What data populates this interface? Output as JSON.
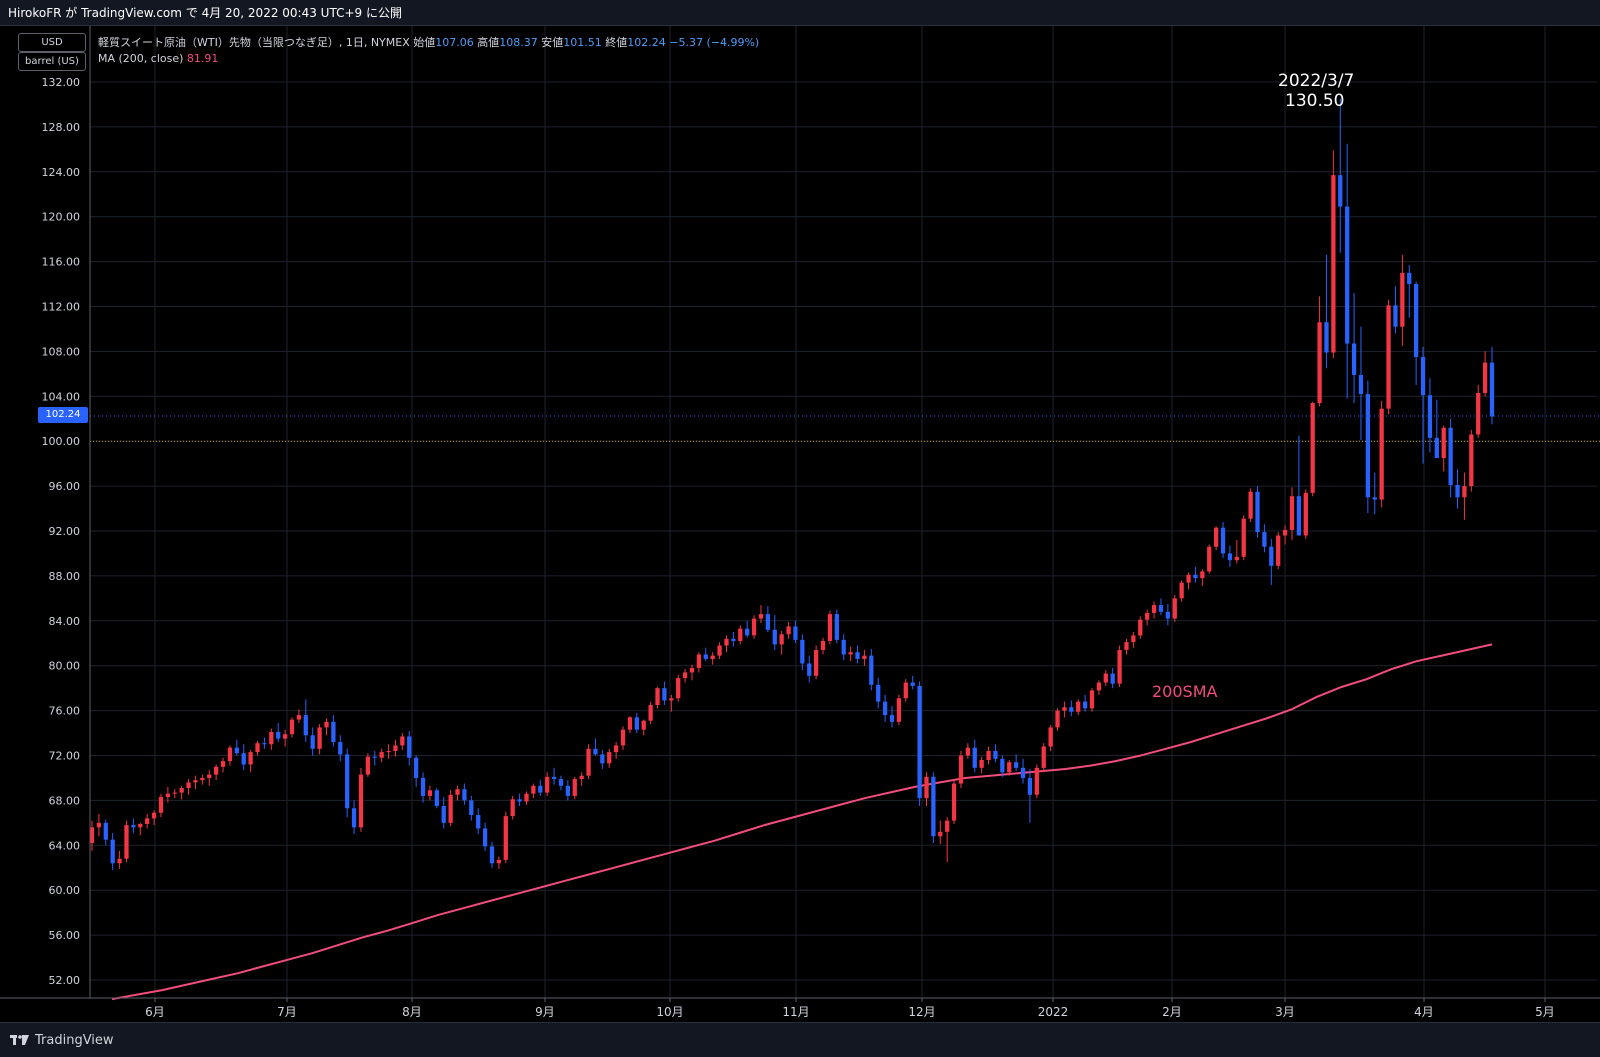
{
  "header": {
    "publish_line": "HirokoFR が TradingView.com で 4月 20, 2022 00:43 UTC+9 に公開"
  },
  "scale_pills": {
    "currency": "USD",
    "unit": "barrel (US)"
  },
  "legend": {
    "symbol": "軽質スイート原油（WTI）先物（当限つなぎ足）, 1日, NYMEX",
    "open_label": "始値",
    "open": "107.06",
    "high_label": "高値",
    "high": "108.37",
    "low_label": "安値",
    "low": "101.51",
    "close_label": "終値",
    "close": "102.24",
    "change": "−5.37 (−4.99%)",
    "ma_label": "MA (200, close)",
    "ma_value": "81.91"
  },
  "annotations": {
    "peak_date": "2022/3/7",
    "peak_price": "130.50",
    "sma_label": "200SMA",
    "last_price_badge": "102.24"
  },
  "footer": {
    "brand": "TradingView"
  },
  "colors": {
    "up": "#f23645",
    "down": "#2962ff",
    "ma": "#f04d7d",
    "grid": "#1e222d",
    "hline": "#c8a43b",
    "last_line": "#2962ff"
  },
  "chart_data": {
    "type": "candlestick",
    "ylim": [
      50,
      132
    ],
    "y_ticks": [
      "52.00",
      "56.00",
      "60.00",
      "64.00",
      "68.00",
      "72.00",
      "76.00",
      "80.00",
      "84.00",
      "88.00",
      "92.00",
      "96.00",
      "100.00",
      "104.00",
      "108.00",
      "112.00",
      "116.00",
      "120.00",
      "124.00",
      "128.00",
      "132.00"
    ],
    "x_ticks": [
      "6月",
      "7月",
      "8月",
      "9月",
      "10月",
      "11月",
      "12月",
      "2022",
      "2月",
      "3月",
      "4月",
      "5月"
    ],
    "horizontal_line": 100,
    "last_price": 102.24,
    "ma_series": {
      "name": "MA (200, close)",
      "values": [
        50.3,
        50.7,
        51.1,
        51.6,
        52.1,
        52.6,
        53.2,
        53.8,
        54.4,
        55.1,
        55.8,
        56.4,
        57.1,
        57.8,
        58.4,
        59.0,
        59.6,
        60.2,
        60.8,
        61.4,
        62.0,
        62.6,
        63.2,
        63.8,
        64.4,
        65.1,
        65.8,
        66.4,
        67.0,
        67.6,
        68.2,
        68.7,
        69.2,
        69.6,
        70.0,
        70.2,
        70.4,
        70.6,
        70.8,
        71.1,
        71.5,
        72.0,
        72.6,
        73.2,
        73.9,
        74.6,
        75.3,
        76.1,
        77.2,
        78.1,
        78.8,
        79.7,
        80.4,
        80.9,
        81.4,
        81.9
      ]
    },
    "candles": [
      [
        64.2,
        66.2,
        63.5,
        65.6
      ],
      [
        65.6,
        66.8,
        64.8,
        66.0
      ],
      [
        66.0,
        66.3,
        64.0,
        64.5
      ],
      [
        64.5,
        65.1,
        61.8,
        62.4
      ],
      [
        62.4,
        63.5,
        61.9,
        62.8
      ],
      [
        62.8,
        66.2,
        62.5,
        65.8
      ],
      [
        65.8,
        66.4,
        65.1,
        65.6
      ],
      [
        65.6,
        66.0,
        64.9,
        65.9
      ],
      [
        65.9,
        66.8,
        65.5,
        66.4
      ],
      [
        66.4,
        67.1,
        65.8,
        66.9
      ],
      [
        66.9,
        68.6,
        66.5,
        68.3
      ],
      [
        68.3,
        69.2,
        67.8,
        68.6
      ],
      [
        68.6,
        69.0,
        68.2,
        68.7
      ],
      [
        68.7,
        69.3,
        68.1,
        69.1
      ],
      [
        69.1,
        69.9,
        68.5,
        69.6
      ],
      [
        69.6,
        70.2,
        69.0,
        69.8
      ],
      [
        69.8,
        70.3,
        69.4,
        70.0
      ],
      [
        70.0,
        70.7,
        69.3,
        70.3
      ],
      [
        70.3,
        71.2,
        69.8,
        71.0
      ],
      [
        71.0,
        71.8,
        70.5,
        71.5
      ],
      [
        71.5,
        72.9,
        71.1,
        72.7
      ],
      [
        72.7,
        73.4,
        72.0,
        72.2
      ],
      [
        72.2,
        73.0,
        70.7,
        71.2
      ],
      [
        71.2,
        72.5,
        70.5,
        72.3
      ],
      [
        72.3,
        73.3,
        72.0,
        73.1
      ],
      [
        73.1,
        73.6,
        72.6,
        73.0
      ],
      [
        73.0,
        74.4,
        72.5,
        74.1
      ],
      [
        74.1,
        74.9,
        73.2,
        73.5
      ],
      [
        73.5,
        74.3,
        72.8,
        73.9
      ],
      [
        73.9,
        75.4,
        73.6,
        75.2
      ],
      [
        75.2,
        76.1,
        74.9,
        75.6
      ],
      [
        75.6,
        77.0,
        73.2,
        73.8
      ],
      [
        73.8,
        74.5,
        72.0,
        72.6
      ],
      [
        72.6,
        74.8,
        72.1,
        74.5
      ],
      [
        74.5,
        75.3,
        73.8,
        75.0
      ],
      [
        75.0,
        75.6,
        72.8,
        73.2
      ],
      [
        73.2,
        73.8,
        71.5,
        72.1
      ],
      [
        72.1,
        72.6,
        66.5,
        67.3
      ],
      [
        67.3,
        68.0,
        65.0,
        65.6
      ],
      [
        65.6,
        70.9,
        65.2,
        70.3
      ],
      [
        70.3,
        72.2,
        70.1,
        71.9
      ],
      [
        71.9,
        72.4,
        71.1,
        71.8
      ],
      [
        71.8,
        72.6,
        71.4,
        72.3
      ],
      [
        72.3,
        73.0,
        71.7,
        72.4
      ],
      [
        72.4,
        73.4,
        71.9,
        72.9
      ],
      [
        72.9,
        74.0,
        72.5,
        73.7
      ],
      [
        73.7,
        74.2,
        71.1,
        71.8
      ],
      [
        71.8,
        72.0,
        69.2,
        70.0
      ],
      [
        70.0,
        70.5,
        67.8,
        68.4
      ],
      [
        68.4,
        69.3,
        68.0,
        68.9
      ],
      [
        68.9,
        69.1,
        67.3,
        67.5
      ],
      [
        67.5,
        68.3,
        65.5,
        66.0
      ],
      [
        66.0,
        68.9,
        65.7,
        68.5
      ],
      [
        68.5,
        69.3,
        68.0,
        69.0
      ],
      [
        69.0,
        69.5,
        67.6,
        68.0
      ],
      [
        68.0,
        68.4,
        66.2,
        66.7
      ],
      [
        66.7,
        67.3,
        65.0,
        65.5
      ],
      [
        65.5,
        66.0,
        63.5,
        63.9
      ],
      [
        63.9,
        64.3,
        62.0,
        62.4
      ],
      [
        62.4,
        63.0,
        61.9,
        62.7
      ],
      [
        62.7,
        67.0,
        62.4,
        66.6
      ],
      [
        66.6,
        68.4,
        66.3,
        68.1
      ],
      [
        68.1,
        68.6,
        67.5,
        67.9
      ],
      [
        67.9,
        68.8,
        67.6,
        68.6
      ],
      [
        68.6,
        69.5,
        68.2,
        69.3
      ],
      [
        69.3,
        69.8,
        68.4,
        68.7
      ],
      [
        68.7,
        70.5,
        68.4,
        70.1
      ],
      [
        70.1,
        70.9,
        69.4,
        69.9
      ],
      [
        69.9,
        70.2,
        68.9,
        69.3
      ],
      [
        69.3,
        69.8,
        68.0,
        68.4
      ],
      [
        68.4,
        70.1,
        68.1,
        69.9
      ],
      [
        69.9,
        70.5,
        69.3,
        70.2
      ],
      [
        70.2,
        73.0,
        69.9,
        72.6
      ],
      [
        72.6,
        73.5,
        72.0,
        72.1
      ],
      [
        72.1,
        72.5,
        70.8,
        71.3
      ],
      [
        71.3,
        72.6,
        70.9,
        72.3
      ],
      [
        72.3,
        73.2,
        71.7,
        72.9
      ],
      [
        72.9,
        74.6,
        72.5,
        74.3
      ],
      [
        74.3,
        75.5,
        74.0,
        75.4
      ],
      [
        75.4,
        75.8,
        74.0,
        74.3
      ],
      [
        74.3,
        75.2,
        73.8,
        75.1
      ],
      [
        75.1,
        76.8,
        74.8,
        76.5
      ],
      [
        76.5,
        78.1,
        76.2,
        78.0
      ],
      [
        78.0,
        78.6,
        76.5,
        76.9
      ],
      [
        76.9,
        77.4,
        75.9,
        77.1
      ],
      [
        77.1,
        79.2,
        76.8,
        78.9
      ],
      [
        78.9,
        79.7,
        78.5,
        79.4
      ],
      [
        79.4,
        80.1,
        78.7,
        79.8
      ],
      [
        79.8,
        81.2,
        79.4,
        81.0
      ],
      [
        81.0,
        81.6,
        80.4,
        80.6
      ],
      [
        80.6,
        81.2,
        80.1,
        80.9
      ],
      [
        80.9,
        82.1,
        80.6,
        81.8
      ],
      [
        81.8,
        82.7,
        81.2,
        82.4
      ],
      [
        82.4,
        83.0,
        81.7,
        82.2
      ],
      [
        82.2,
        83.6,
        81.9,
        83.3
      ],
      [
        83.3,
        84.0,
        82.5,
        82.7
      ],
      [
        82.7,
        84.5,
        82.4,
        84.2
      ],
      [
        84.2,
        85.4,
        83.8,
        84.6
      ],
      [
        84.6,
        85.3,
        83.0,
        83.2
      ],
      [
        83.2,
        84.5,
        81.4,
        81.9
      ],
      [
        81.9,
        83.1,
        81.0,
        82.8
      ],
      [
        82.8,
        83.9,
        82.4,
        83.5
      ],
      [
        83.5,
        84.0,
        82.0,
        82.3
      ],
      [
        82.3,
        82.8,
        79.6,
        80.2
      ],
      [
        80.2,
        80.9,
        78.5,
        79.1
      ],
      [
        79.1,
        81.8,
        78.8,
        81.4
      ],
      [
        81.4,
        82.5,
        81.0,
        82.2
      ],
      [
        82.2,
        84.9,
        81.9,
        84.6
      ],
      [
        84.6,
        85.0,
        82.0,
        82.3
      ],
      [
        82.3,
        82.8,
        80.5,
        81.0
      ],
      [
        81.0,
        81.7,
        80.4,
        81.2
      ],
      [
        81.2,
        81.8,
        80.2,
        80.6
      ],
      [
        80.6,
        81.4,
        80.0,
        80.9
      ],
      [
        80.9,
        81.5,
        77.8,
        78.3
      ],
      [
        78.3,
        78.9,
        76.2,
        76.8
      ],
      [
        76.8,
        77.4,
        75.0,
        75.6
      ],
      [
        75.6,
        76.4,
        74.5,
        75.0
      ],
      [
        75.0,
        77.4,
        74.7,
        77.1
      ],
      [
        77.1,
        78.8,
        76.8,
        78.5
      ],
      [
        78.5,
        79.1,
        77.9,
        78.2
      ],
      [
        78.2,
        78.6,
        67.5,
        68.2
      ],
      [
        68.2,
        70.5,
        67.5,
        70.1
      ],
      [
        70.1,
        70.5,
        64.2,
        64.8
      ],
      [
        64.8,
        66.2,
        64.1,
        65.2
      ],
      [
        65.2,
        66.5,
        62.5,
        66.2
      ],
      [
        66.2,
        69.8,
        65.9,
        69.5
      ],
      [
        69.5,
        72.4,
        69.1,
        72.0
      ],
      [
        72.0,
        73.1,
        71.7,
        72.7
      ],
      [
        72.7,
        73.4,
        70.5,
        70.9
      ],
      [
        70.9,
        71.9,
        70.4,
        71.6
      ],
      [
        71.6,
        72.8,
        71.2,
        72.4
      ],
      [
        72.4,
        73.0,
        71.4,
        71.7
      ],
      [
        71.7,
        72.0,
        70.1,
        70.5
      ],
      [
        70.5,
        71.6,
        70.2,
        71.4
      ],
      [
        71.4,
        72.1,
        70.6,
        70.9
      ],
      [
        70.9,
        71.7,
        69.5,
        70.0
      ],
      [
        70.0,
        70.8,
        66.0,
        68.5
      ],
      [
        68.5,
        71.2,
        68.2,
        70.9
      ],
      [
        70.9,
        73.1,
        70.5,
        72.8
      ],
      [
        72.8,
        74.7,
        72.4,
        74.5
      ],
      [
        74.5,
        76.2,
        74.2,
        76.0
      ],
      [
        76.0,
        76.8,
        75.4,
        76.3
      ],
      [
        76.3,
        76.9,
        75.5,
        75.9
      ],
      [
        75.9,
        77.0,
        75.6,
        76.8
      ],
      [
        76.8,
        77.4,
        75.9,
        76.2
      ],
      [
        76.2,
        78.0,
        75.9,
        77.8
      ],
      [
        77.8,
        78.7,
        77.4,
        78.5
      ],
      [
        78.5,
        79.6,
        78.2,
        79.3
      ],
      [
        79.3,
        79.8,
        78.0,
        78.4
      ],
      [
        78.4,
        81.8,
        78.1,
        81.4
      ],
      [
        81.4,
        82.4,
        81.0,
        82.1
      ],
      [
        82.1,
        83.0,
        81.6,
        82.7
      ],
      [
        82.7,
        84.4,
        82.4,
        84.1
      ],
      [
        84.1,
        85.0,
        83.6,
        84.7
      ],
      [
        84.7,
        85.7,
        84.2,
        85.4
      ],
      [
        85.4,
        86.0,
        84.5,
        84.8
      ],
      [
        84.8,
        85.5,
        83.6,
        84.2
      ],
      [
        84.2,
        86.3,
        83.9,
        86.0
      ],
      [
        86.0,
        87.6,
        85.7,
        87.4
      ],
      [
        87.4,
        88.3,
        86.8,
        88.1
      ],
      [
        88.1,
        88.8,
        87.4,
        87.8
      ],
      [
        87.8,
        88.6,
        87.1,
        88.4
      ],
      [
        88.4,
        90.8,
        88.2,
        90.6
      ],
      [
        90.6,
        92.4,
        90.3,
        92.3
      ],
      [
        92.3,
        92.8,
        89.6,
        90.0
      ],
      [
        90.0,
        90.7,
        88.8,
        89.4
      ],
      [
        89.4,
        91.2,
        89.1,
        89.7
      ],
      [
        89.7,
        93.4,
        89.4,
        93.1
      ],
      [
        93.1,
        95.8,
        92.8,
        95.5
      ],
      [
        95.5,
        96.0,
        91.4,
        91.9
      ],
      [
        91.9,
        92.6,
        90.1,
        90.6
      ],
      [
        90.6,
        91.3,
        87.2,
        88.9
      ],
      [
        88.9,
        91.9,
        88.6,
        91.6
      ],
      [
        91.6,
        92.5,
        90.8,
        92.1
      ],
      [
        92.1,
        95.9,
        91.2,
        95.1
      ],
      [
        95.1,
        100.5,
        92.2,
        91.6
      ],
      [
        91.6,
        95.7,
        91.3,
        95.4
      ],
      [
        95.4,
        103.5,
        95.1,
        103.4
      ],
      [
        103.4,
        112.9,
        103.1,
        110.6
      ],
      [
        110.6,
        116.6,
        106.5,
        107.9
      ],
      [
        107.9,
        125.9,
        107.4,
        123.7
      ],
      [
        123.7,
        130.5,
        116.8,
        120.9
      ],
      [
        120.9,
        126.5,
        103.8,
        108.7
      ],
      [
        108.7,
        113.2,
        103.4,
        105.9
      ],
      [
        105.9,
        110.2,
        100.1,
        104.2
      ],
      [
        104.2,
        105.4,
        93.6,
        95.0
      ],
      [
        95.0,
        97.2,
        93.5,
        94.8
      ],
      [
        94.8,
        103.6,
        94.1,
        102.9
      ],
      [
        102.9,
        112.6,
        102.4,
        112.1
      ],
      [
        112.1,
        113.8,
        109.6,
        110.2
      ],
      [
        110.2,
        116.6,
        108.5,
        115.0
      ],
      [
        115.0,
        115.7,
        111.0,
        114.0
      ],
      [
        114.0,
        114.2,
        105.0,
        107.5
      ],
      [
        107.5,
        108.4,
        98.0,
        104.1
      ],
      [
        104.1,
        105.6,
        99.0,
        100.3
      ],
      [
        100.3,
        103.7,
        98.7,
        98.5
      ],
      [
        98.5,
        101.4,
        97.3,
        101.2
      ],
      [
        101.2,
        102.0,
        95.0,
        96.1
      ],
      [
        96.1,
        97.5,
        94.0,
        95.0
      ],
      [
        95.0,
        97.2,
        93.0,
        96.0
      ],
      [
        96.0,
        101.0,
        95.5,
        100.6
      ],
      [
        100.6,
        105.0,
        100.3,
        104.3
      ],
      [
        104.3,
        108.0,
        104.0,
        107.0
      ],
      [
        107.0,
        108.4,
        101.5,
        102.2
      ]
    ]
  }
}
